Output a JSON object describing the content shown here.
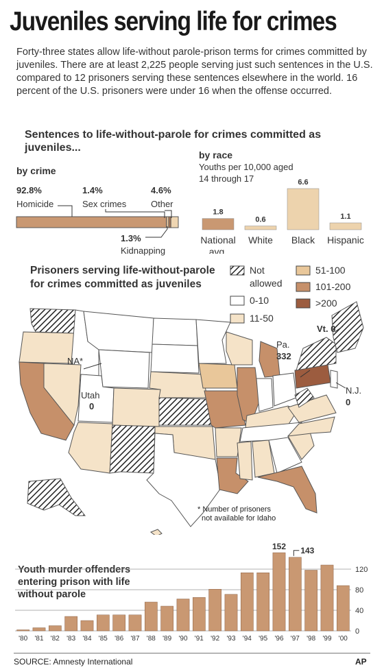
{
  "title": "Juveniles serving life for crimes",
  "intro": "Forty-three states allow life-without parole-prison terms for crimes committed by juveniles. There are at least 2,225 people serving just such sentences in the U.S. compared to 12 prisoners serving these sentences elsewhere in the world. 16 percent of the U.S. prisoners were under 16 when the offense occurred.",
  "sentences": {
    "title": "Sentences to life-without-parole for crimes committed as juveniles...",
    "by_crime": {
      "label": "by crime",
      "items": [
        {
          "pct": "92.8%",
          "name": "Homicide",
          "value": 92.8,
          "color": "#c99872"
        },
        {
          "pct": "1.4%",
          "name": "Sex crimes",
          "value": 1.4,
          "color": "#e8c7a0"
        },
        {
          "pct": "1.3%",
          "name": "Kidnapping",
          "value": 1.3,
          "color": "#b07a55"
        },
        {
          "pct": "4.6%",
          "name": "Other",
          "value": 4.6,
          "color": "#efd6b2"
        }
      ]
    },
    "by_race": {
      "label": "by race",
      "sublabel_1": "Youths per 10,000 aged",
      "sublabel_2": "14 through 17",
      "bars": [
        {
          "value_label": "1.8",
          "name_1": "National",
          "name_2": "avg.",
          "value": 1.8,
          "color": "#c99872"
        },
        {
          "value_label": "0.6",
          "name_1": "White",
          "name_2": "",
          "value": 0.6,
          "color": "#edd3ad"
        },
        {
          "value_label": "6.6",
          "name_1": "Black",
          "name_2": "",
          "value": 6.6,
          "color": "#edd3ad"
        },
        {
          "value_label": "1.1",
          "name_1": "Hispanic",
          "name_2": "",
          "value": 1.1,
          "color": "#edd3ad"
        }
      ]
    }
  },
  "map": {
    "title_1": "Prisoners serving life-without-parole",
    "title_2": "for crimes committed as juveniles",
    "legend": [
      {
        "label_1": "Not",
        "label_2": "allowed",
        "fill": "hatch"
      },
      {
        "label_1": "0-10",
        "label_2": "",
        "fill": "#ffffff"
      },
      {
        "label_1": "11-50",
        "label_2": "",
        "fill": "#f5e3c8"
      },
      {
        "label_1": "51-100",
        "label_2": "",
        "fill": "#e9c79a"
      },
      {
        "label_1": "101-200",
        "label_2": "",
        "fill": "#c6906a"
      },
      {
        "label_1": ">200",
        "label_2": "",
        "fill": "#9c5c3f"
      }
    ],
    "annotations": {
      "na": "NA*",
      "utah_1": "Utah",
      "utah_2": "0",
      "pa_1": "Pa.",
      "pa_2": "332",
      "vt": "Vt. 0",
      "nj_1": "N.J.",
      "nj_2": "0",
      "footnote_1": "* Number of prisoners",
      "footnote_2": "not available for Idaho"
    }
  },
  "chart_data": {
    "type": "bar",
    "title": "Youth murder offenders entering prison with life without parole",
    "title_lines": [
      "Youth murder offenders",
      "entering prison with life",
      "without parole"
    ],
    "categories": [
      "'80",
      "'81",
      "'82",
      "'83",
      "'84",
      "'85",
      "'86",
      "'87",
      "'88",
      "'89",
      "'90",
      "'91",
      "'92",
      "'93",
      "'94",
      "'95",
      "'96",
      "'97",
      "'98",
      "'99",
      "'00"
    ],
    "values": [
      2,
      6,
      10,
      28,
      20,
      31,
      31,
      31,
      56,
      48,
      62,
      65,
      81,
      71,
      113,
      113,
      152,
      143,
      118,
      128,
      88
    ],
    "data_labels": [
      {
        "index": 16,
        "text": "152"
      },
      {
        "index": 17,
        "text": "143"
      }
    ],
    "ylim": [
      0,
      160
    ],
    "yticks": [
      0,
      40,
      80,
      120
    ],
    "bar_color": "#c99872",
    "grid": true
  },
  "footer": {
    "source": "SOURCE: Amnesty International",
    "credit": "AP"
  }
}
